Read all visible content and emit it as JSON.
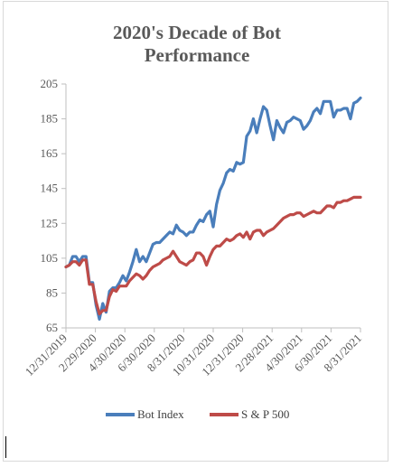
{
  "chart_data": {
    "type": "line",
    "title_lines": [
      "2020's Decade of Bot",
      "Performance"
    ],
    "xlabel": "",
    "ylabel": "",
    "ylim": [
      65,
      205
    ],
    "yticks": [
      65,
      85,
      105,
      125,
      145,
      165,
      185,
      205
    ],
    "x_tick_labels": [
      "12/31/2019",
      "2/29/2020",
      "4/30/2020",
      "6/30/2020",
      "8/31/2020",
      "10/31/2020",
      "12/31/2020",
      "2/28/2021",
      "4/30/2021",
      "6/30/2021",
      "8/31/2021"
    ],
    "grid": false,
    "legend_position": "bottom",
    "series": [
      {
        "name": "Bot Index",
        "color": "#4a7ebb",
        "values": [
          100,
          101,
          106,
          106,
          103,
          106,
          106,
          91,
          91,
          78,
          70,
          79,
          74,
          86,
          88,
          88,
          91,
          95,
          92,
          97,
          103,
          110,
          103,
          106,
          103,
          108,
          113,
          114,
          114,
          116,
          118,
          120,
          119,
          124,
          121,
          120,
          118,
          120,
          120,
          124,
          127,
          126,
          130,
          132,
          123,
          136,
          144,
          148,
          154,
          156,
          155,
          160,
          159,
          160,
          175,
          178,
          185,
          177,
          185,
          192,
          190,
          181,
          173,
          184,
          180,
          177,
          183,
          184,
          186,
          185,
          184,
          179,
          181,
          184,
          189,
          191,
          188,
          195,
          195,
          195,
          186,
          190,
          190,
          191,
          191,
          185,
          194,
          195,
          197
        ]
      },
      {
        "name": "S & P 500",
        "color": "#be4b48",
        "values": [
          100,
          101,
          103,
          103,
          101,
          104,
          104,
          90,
          90,
          80,
          73,
          75,
          75,
          83,
          87,
          86,
          89,
          89,
          89,
          92,
          94,
          96,
          95,
          93,
          95,
          98,
          100,
          101,
          102,
          104,
          105,
          106,
          109,
          106,
          103,
          102,
          101,
          103,
          104,
          108,
          108,
          106,
          101,
          106,
          110,
          112,
          112,
          114,
          116,
          115,
          116,
          118,
          119,
          117,
          120,
          116,
          120,
          121,
          121,
          118,
          120,
          121,
          122,
          124,
          126,
          128,
          129,
          130,
          130,
          131,
          131,
          129,
          130,
          131,
          132,
          131,
          131,
          133,
          135,
          135,
          134,
          137,
          137,
          138,
          138,
          139,
          140,
          140,
          140
        ]
      }
    ]
  }
}
